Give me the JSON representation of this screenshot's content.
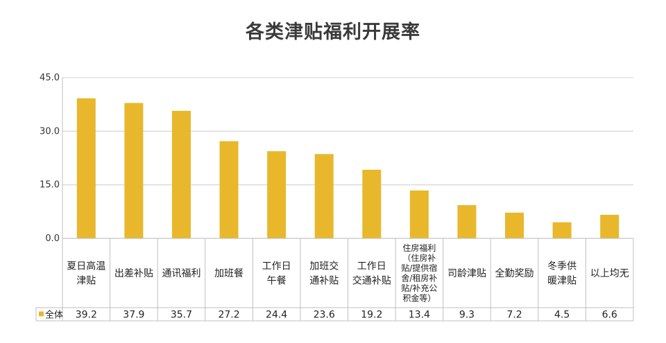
{
  "chart_data": {
    "type": "bar",
    "title": "各类津贴福利开展率",
    "categories": [
      "夏日高温\n津贴",
      "出差补贴",
      "通讯福利",
      "加班餐",
      "工作日\n午餐",
      "加班交\n通补贴",
      "工作日\n交通补贴",
      "住房福利\n（住房补\n贴/提供宿\n舍/租房补\n贴/补充公\n积金等）",
      "司龄津贴",
      "全勤奖励",
      "冬季供\n暖津贴",
      "以上均无"
    ],
    "series": [
      {
        "name": "全体",
        "values": [
          39.2,
          37.9,
          35.7,
          27.2,
          24.4,
          23.6,
          19.2,
          13.4,
          9.3,
          7.2,
          4.5,
          6.6
        ],
        "value_labels": [
          "39.2",
          "37.9",
          "35.7",
          "27.2",
          "24.4",
          "23.6",
          "19.2",
          "13.4",
          "9.3",
          "7.2",
          "4.5",
          "6.6"
        ]
      }
    ],
    "ylim": [
      0,
      45
    ],
    "yticks": [
      0,
      15,
      30,
      45
    ],
    "ytick_labels": [
      "0.0",
      "15.0",
      "30.0",
      "45.0"
    ],
    "grid": true,
    "legend": "bottom-left, in data table",
    "colors": {
      "bar": "#E8B72B",
      "grid": "#D9D9D9",
      "table_border": "#BFBFBF"
    }
  }
}
